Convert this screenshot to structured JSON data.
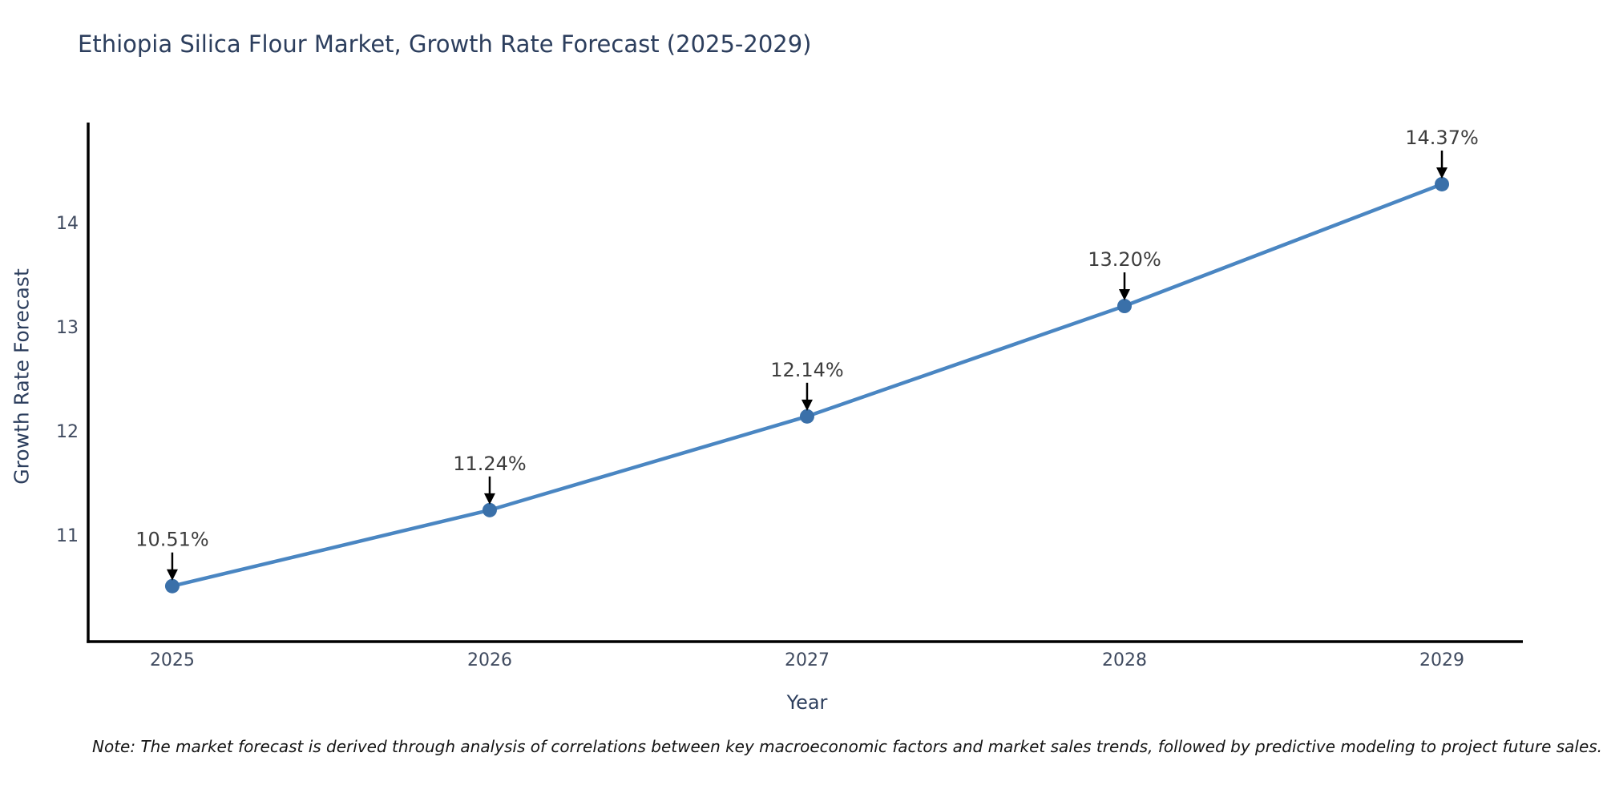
{
  "chart_data": {
    "type": "line",
    "title": "Ethiopia Silica Flour Market, Growth Rate Forecast (2025-2029)",
    "xlabel": "Year",
    "ylabel": "Growth Rate Forecast",
    "x": [
      2025,
      2026,
      2027,
      2028,
      2029
    ],
    "values": [
      10.51,
      11.24,
      12.14,
      13.2,
      14.37
    ],
    "point_labels": [
      "10.51%",
      "11.24%",
      "12.14%",
      "13.20%",
      "14.37%"
    ],
    "yticks": [
      11,
      12,
      13,
      14
    ],
    "ytick_labels": [
      "11",
      "12",
      "13",
      "14"
    ],
    "xtick_labels": [
      "2025",
      "2026",
      "2027",
      "2028",
      "2029"
    ],
    "ylim": [
      9.977,
      14.962
    ],
    "xlim": [
      2024.735,
      2029.255
    ],
    "grid": false,
    "legend": null,
    "line_color": "#4a86c2",
    "marker_color": "#3a70a9",
    "axis_color": "#000000",
    "annotation_arrow_color": "#000000",
    "note": "Note: The market forecast is derived through analysis of correlations between key macroeconomic factors and market sales trends, followed by predictive modeling to project future sales."
  }
}
